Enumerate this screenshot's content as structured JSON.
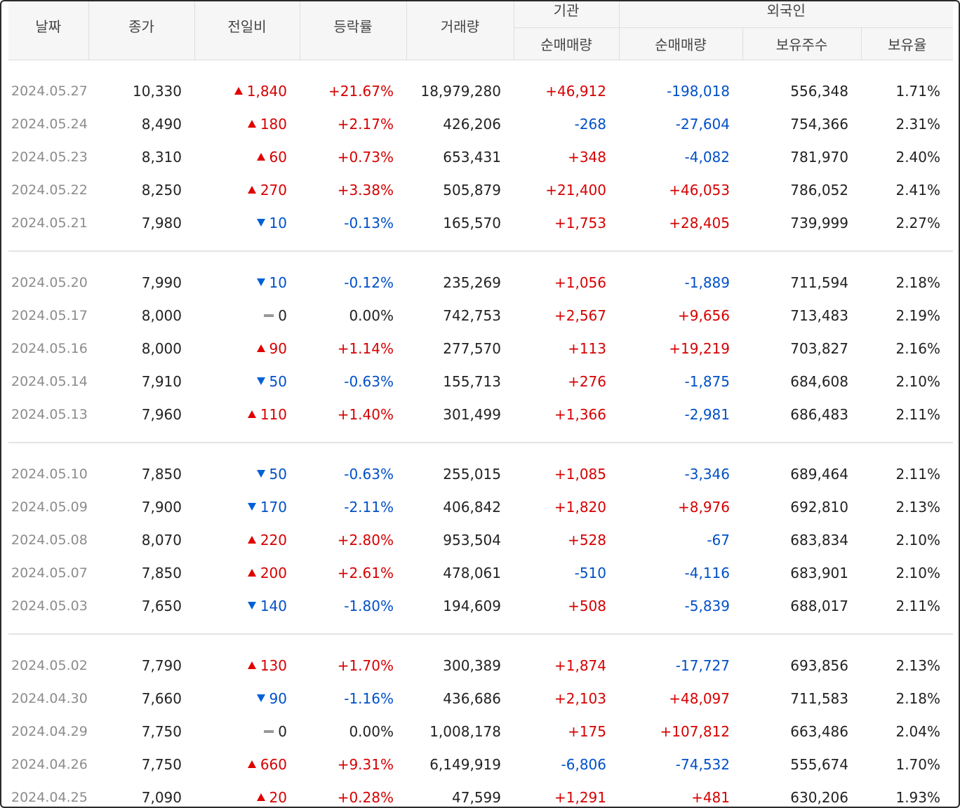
{
  "header": {
    "date": "날짜",
    "close": "종가",
    "change": "전일비",
    "rate": "등락률",
    "volume": "거래량",
    "institution": "기관",
    "foreign": "외국인",
    "inst_net": "순매매량",
    "foreign_net": "순매매량",
    "foreign_holdings": "보유주수",
    "foreign_ratio": "보유율"
  },
  "colors": {
    "up": "#d60000",
    "down": "#0050c8",
    "flat": "#999999"
  },
  "groups": [
    {
      "rows": [
        {
          "date": "2024.05.27",
          "close": "10,330",
          "dir": "up",
          "change": "1,840",
          "rate": "+21.67%",
          "volume": "18,979,280",
          "inst": "+46,912",
          "foreign": "-198,018",
          "holdings": "556,348",
          "ratio": "1.71%"
        },
        {
          "date": "2024.05.24",
          "close": "8,490",
          "dir": "up",
          "change": "180",
          "rate": "+2.17%",
          "volume": "426,206",
          "inst": "-268",
          "foreign": "-27,604",
          "holdings": "754,366",
          "ratio": "2.31%"
        },
        {
          "date": "2024.05.23",
          "close": "8,310",
          "dir": "up",
          "change": "60",
          "rate": "+0.73%",
          "volume": "653,431",
          "inst": "+348",
          "foreign": "-4,082",
          "holdings": "781,970",
          "ratio": "2.40%"
        },
        {
          "date": "2024.05.22",
          "close": "8,250",
          "dir": "up",
          "change": "270",
          "rate": "+3.38%",
          "volume": "505,879",
          "inst": "+21,400",
          "foreign": "+46,053",
          "holdings": "786,052",
          "ratio": "2.41%"
        },
        {
          "date": "2024.05.21",
          "close": "7,980",
          "dir": "down",
          "change": "10",
          "rate": "-0.13%",
          "volume": "165,570",
          "inst": "+1,753",
          "foreign": "+28,405",
          "holdings": "739,999",
          "ratio": "2.27%"
        }
      ]
    },
    {
      "rows": [
        {
          "date": "2024.05.20",
          "close": "7,990",
          "dir": "down",
          "change": "10",
          "rate": "-0.12%",
          "volume": "235,269",
          "inst": "+1,056",
          "foreign": "-1,889",
          "holdings": "711,594",
          "ratio": "2.18%"
        },
        {
          "date": "2024.05.17",
          "close": "8,000",
          "dir": "flat",
          "change": "0",
          "rate": "0.00%",
          "volume": "742,753",
          "inst": "+2,567",
          "foreign": "+9,656",
          "holdings": "713,483",
          "ratio": "2.19%"
        },
        {
          "date": "2024.05.16",
          "close": "8,000",
          "dir": "up",
          "change": "90",
          "rate": "+1.14%",
          "volume": "277,570",
          "inst": "+113",
          "foreign": "+19,219",
          "holdings": "703,827",
          "ratio": "2.16%"
        },
        {
          "date": "2024.05.14",
          "close": "7,910",
          "dir": "down",
          "change": "50",
          "rate": "-0.63%",
          "volume": "155,713",
          "inst": "+276",
          "foreign": "-1,875",
          "holdings": "684,608",
          "ratio": "2.10%"
        },
        {
          "date": "2024.05.13",
          "close": "7,960",
          "dir": "up",
          "change": "110",
          "rate": "+1.40%",
          "volume": "301,499",
          "inst": "+1,366",
          "foreign": "-2,981",
          "holdings": "686,483",
          "ratio": "2.11%"
        }
      ]
    },
    {
      "rows": [
        {
          "date": "2024.05.10",
          "close": "7,850",
          "dir": "down",
          "change": "50",
          "rate": "-0.63%",
          "volume": "255,015",
          "inst": "+1,085",
          "foreign": "-3,346",
          "holdings": "689,464",
          "ratio": "2.11%"
        },
        {
          "date": "2024.05.09",
          "close": "7,900",
          "dir": "down",
          "change": "170",
          "rate": "-2.11%",
          "volume": "406,842",
          "inst": "+1,820",
          "foreign": "+8,976",
          "holdings": "692,810",
          "ratio": "2.13%"
        },
        {
          "date": "2024.05.08",
          "close": "8,070",
          "dir": "up",
          "change": "220",
          "rate": "+2.80%",
          "volume": "953,504",
          "inst": "+528",
          "foreign": "-67",
          "holdings": "683,834",
          "ratio": "2.10%"
        },
        {
          "date": "2024.05.07",
          "close": "7,850",
          "dir": "up",
          "change": "200",
          "rate": "+2.61%",
          "volume": "478,061",
          "inst": "-510",
          "foreign": "-4,116",
          "holdings": "683,901",
          "ratio": "2.10%"
        },
        {
          "date": "2024.05.03",
          "close": "7,650",
          "dir": "down",
          "change": "140",
          "rate": "-1.80%",
          "volume": "194,609",
          "inst": "+508",
          "foreign": "-5,839",
          "holdings": "688,017",
          "ratio": "2.11%"
        }
      ]
    },
    {
      "rows": [
        {
          "date": "2024.05.02",
          "close": "7,790",
          "dir": "up",
          "change": "130",
          "rate": "+1.70%",
          "volume": "300,389",
          "inst": "+1,874",
          "foreign": "-17,727",
          "holdings": "693,856",
          "ratio": "2.13%"
        },
        {
          "date": "2024.04.30",
          "close": "7,660",
          "dir": "down",
          "change": "90",
          "rate": "-1.16%",
          "volume": "436,686",
          "inst": "+2,103",
          "foreign": "+48,097",
          "holdings": "711,583",
          "ratio": "2.18%"
        },
        {
          "date": "2024.04.29",
          "close": "7,750",
          "dir": "flat",
          "change": "0",
          "rate": "0.00%",
          "volume": "1,008,178",
          "inst": "+175",
          "foreign": "+107,812",
          "holdings": "663,486",
          "ratio": "2.04%"
        },
        {
          "date": "2024.04.26",
          "close": "7,750",
          "dir": "up",
          "change": "660",
          "rate": "+9.31%",
          "volume": "6,149,919",
          "inst": "-6,806",
          "foreign": "-74,532",
          "holdings": "555,674",
          "ratio": "1.70%"
        },
        {
          "date": "2024.04.25",
          "close": "7,090",
          "dir": "up",
          "change": "20",
          "rate": "+0.28%",
          "volume": "47,599",
          "inst": "+1,291",
          "foreign": "+481",
          "holdings": "630,206",
          "ratio": "1.93%"
        }
      ]
    }
  ]
}
